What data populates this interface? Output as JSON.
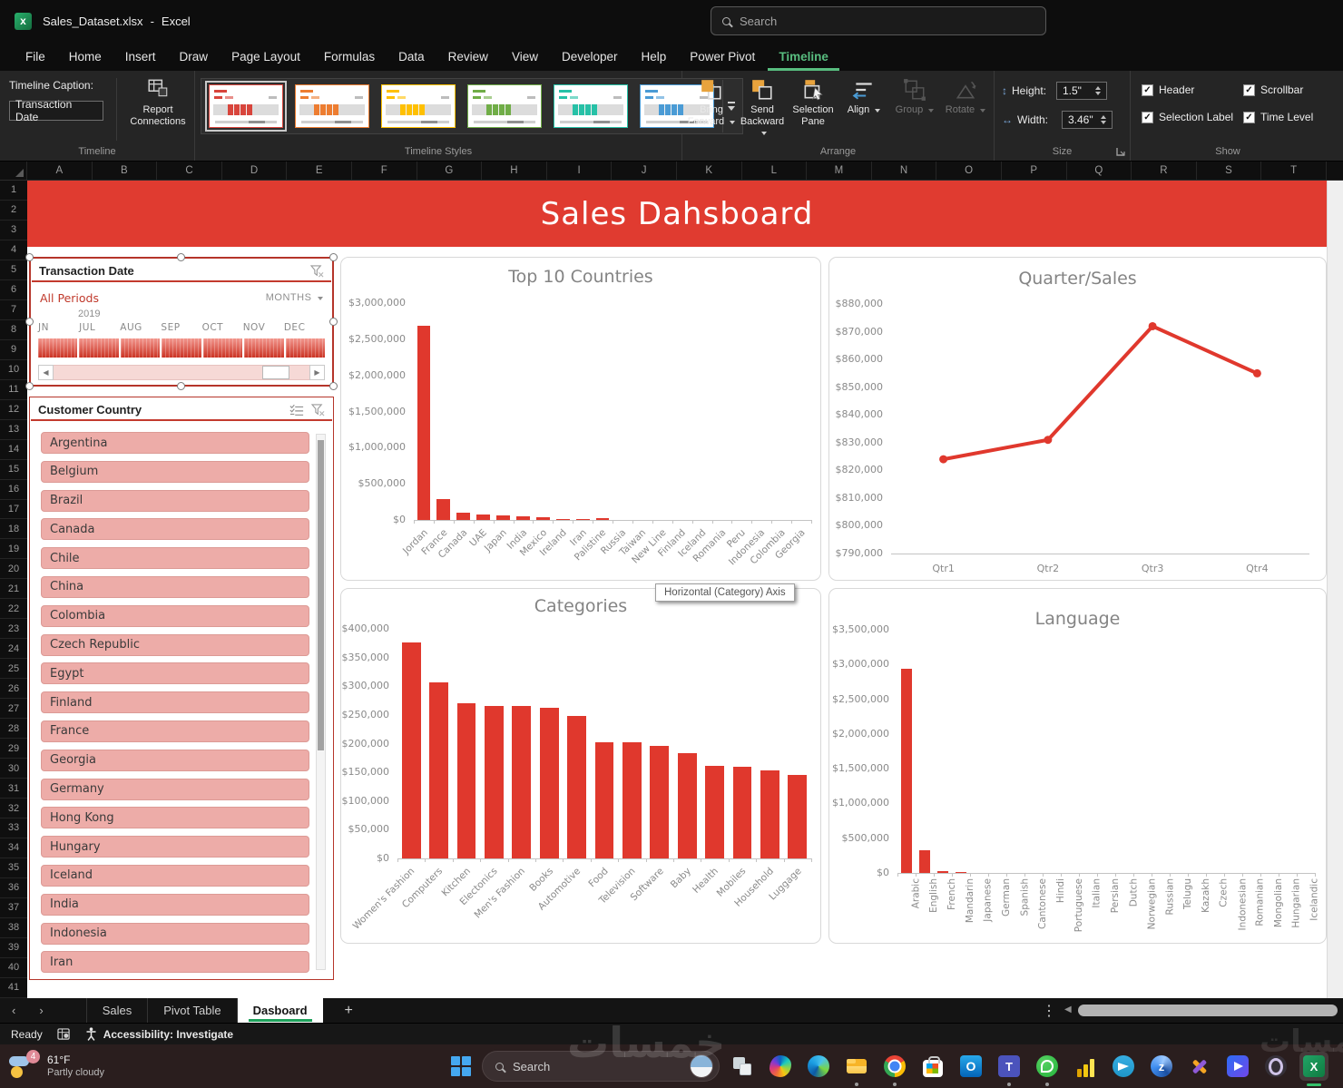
{
  "title_bar": {
    "file_name": "Sales_Dataset.xlsx",
    "separator": "-",
    "app_name": "Excel",
    "search_placeholder": "Search"
  },
  "ribbon_tabs": {
    "items": [
      "File",
      "Home",
      "Insert",
      "Draw",
      "Page Layout",
      "Formulas",
      "Data",
      "Review",
      "View",
      "Developer",
      "Help",
      "Power Pivot",
      "Timeline"
    ],
    "active": "Timeline"
  },
  "ribbon": {
    "timeline_group": {
      "caption_label": "Timeline Caption:",
      "caption_value": "Transaction Date",
      "report_connections_label": "Report Connections",
      "group_label": "Timeline"
    },
    "styles_group": {
      "group_label": "Timeline Styles",
      "styles": [
        {
          "name": "red",
          "color": "#d8453c",
          "selected": true
        },
        {
          "name": "orange",
          "color": "#ed7d31",
          "selected": false
        },
        {
          "name": "yellow",
          "color": "#ffc000",
          "selected": false
        },
        {
          "name": "green",
          "color": "#70ad47",
          "selected": false
        },
        {
          "name": "teal",
          "color": "#27c1a7",
          "selected": false
        },
        {
          "name": "blue",
          "color": "#4a9bd5",
          "selected": false
        }
      ]
    },
    "arrange_group": {
      "group_label": "Arrange",
      "buttons": [
        {
          "label": "Bring Forward",
          "icon": "bring-forward",
          "dropdown": true,
          "disabled": false
        },
        {
          "label": "Send Backward",
          "icon": "send-backward",
          "dropdown": true,
          "disabled": false
        },
        {
          "label": "Selection Pane",
          "icon": "selection-pane",
          "dropdown": false,
          "disabled": false
        },
        {
          "label": "Align",
          "icon": "align",
          "dropdown": true,
          "disabled": false
        },
        {
          "label": "Group",
          "icon": "group",
          "dropdown": true,
          "disabled": true
        },
        {
          "label": "Rotate",
          "icon": "rotate",
          "dropdown": true,
          "disabled": true
        }
      ]
    },
    "size_group": {
      "group_label": "Size",
      "height_label": "Height:",
      "height_value": "1.5\"",
      "width_label": "Width:",
      "width_value": "3.46\""
    },
    "show_group": {
      "group_label": "Show",
      "options": [
        {
          "label": "Header",
          "checked": true
        },
        {
          "label": "Scrollbar",
          "checked": true
        },
        {
          "label": "Selection Label",
          "checked": true
        },
        {
          "label": "Time Level",
          "checked": true
        }
      ]
    }
  },
  "grid": {
    "columns": [
      "A",
      "B",
      "C",
      "D",
      "E",
      "F",
      "G",
      "H",
      "I",
      "J",
      "K",
      "L",
      "M",
      "N",
      "O",
      "P",
      "Q",
      "R",
      "S",
      "T"
    ],
    "row_count": 41
  },
  "banner": {
    "title": "Sales Dahsboard"
  },
  "timeline_slicer": {
    "title": "Transaction Date",
    "period": "All Periods",
    "level": "MONTHS",
    "year": "2019",
    "months": [
      "JN",
      "JUL",
      "AUG",
      "SEP",
      "OCT",
      "NOV",
      "DEC"
    ]
  },
  "country_slicer": {
    "title": "Customer Country",
    "items": [
      "Argentina",
      "Belgium",
      "Brazil",
      "Canada",
      "Chile",
      "China",
      "Colombia",
      "Czech Republic",
      "Egypt",
      "Finland",
      "France",
      "Georgia",
      "Germany",
      "Hong Kong",
      "Hungary",
      "Iceland",
      "India",
      "Indonesia",
      "Iran"
    ]
  },
  "tooltip": {
    "text": "Horizontal (Category) Axis"
  },
  "chart_data": [
    {
      "type": "bar",
      "title": "Top 10 Countries",
      "categories": [
        "Jordan",
        "France",
        "Canada",
        "UAE",
        "Japan",
        "India",
        "Mexico",
        "Ireland",
        "Iran",
        "Palistine",
        "Russia",
        "Taiwan",
        "New Line",
        "Finland",
        "Iceland",
        "Romania",
        "Peru",
        "Indonesia",
        "Colombia",
        "Georgia"
      ],
      "values": [
        2680000,
        290000,
        105000,
        72000,
        60000,
        48000,
        32000,
        18000,
        10000,
        24000,
        0,
        0,
        0,
        0,
        0,
        0,
        0,
        0,
        0,
        0
      ],
      "y_ticks": [
        "$0",
        "$500,000",
        "$1,000,000",
        "$1,500,000",
        "$2,000,000",
        "$2,500,000",
        "$3,000,000"
      ],
      "ylim": [
        0,
        3000000
      ],
      "label_rotation": -45,
      "legend": "none",
      "grid": "off"
    },
    {
      "type": "line",
      "title": "Quarter/Sales",
      "categories": [
        "Qtr1",
        "Qtr2",
        "Qtr3",
        "Qtr4"
      ],
      "values": [
        824000,
        831000,
        872000,
        855000
      ],
      "y_ticks": [
        "$790,000",
        "$800,000",
        "$810,000",
        "$820,000",
        "$830,000",
        "$840,000",
        "$850,000",
        "$860,000",
        "$870,000",
        "$880,000"
      ],
      "ylim": [
        790000,
        880000
      ],
      "label_rotation": 0,
      "legend": "none",
      "grid": "off"
    },
    {
      "type": "bar",
      "title": "Categories",
      "categories": [
        "Women's Fashion",
        "Computers",
        "Kitchen",
        "Electonics",
        "Men's Fashion",
        "Books",
        "Automotive",
        "Food",
        "Television",
        "Software",
        "Baby",
        "Health",
        "Mobiles",
        "Household",
        "Luggage"
      ],
      "values": [
        376000,
        307000,
        271000,
        265000,
        265000,
        263000,
        248000,
        202000,
        202000,
        196000,
        184000,
        161000,
        160000,
        153000,
        145000
      ],
      "y_ticks": [
        "$0",
        "$50,000",
        "$100,000",
        "$150,000",
        "$200,000",
        "$250,000",
        "$300,000",
        "$350,000",
        "$400,000"
      ],
      "ylim": [
        0,
        400000
      ],
      "label_rotation": -45,
      "legend": "none",
      "grid": "off"
    },
    {
      "type": "bar",
      "title": "Language",
      "categories": [
        "Arabic",
        "English",
        "French",
        "Mandarin",
        "Japanese",
        "German",
        "Spanish",
        "Cantonese",
        "Hindi",
        "Portuguese",
        "Italian",
        "Persian",
        "Dutch",
        "Norwegian",
        "Russian",
        "Telugu",
        "Kazakh",
        "Czech",
        "Indonesian",
        "Romanian",
        "Mongolian",
        "Hungarian",
        "Icelandic"
      ],
      "values": [
        2940000,
        330000,
        25000,
        8000,
        4000,
        3000,
        2500,
        2000,
        2000,
        1500,
        1200,
        1000,
        1000,
        800,
        800,
        700,
        600,
        500,
        500,
        400,
        400,
        300,
        300
      ],
      "y_ticks": [
        "$0",
        "$500,000",
        "$1,000,000",
        "$1,500,000",
        "$2,000,000",
        "$2,500,000",
        "$3,000,000",
        "$3,500,000"
      ],
      "ylim": [
        0,
        3500000
      ],
      "label_rotation": -90,
      "legend": "none",
      "grid": "off"
    }
  ],
  "sheet_tabs": {
    "tabs": [
      "Sales",
      "Pivot Table",
      "Dasboard"
    ],
    "active": "Dasboard",
    "add_label": "+"
  },
  "status_bar": {
    "mode": "Ready",
    "accessibility": "Accessibility: Investigate"
  },
  "taskbar": {
    "weather_temp": "61°F",
    "weather_desc": "Partly cloudy",
    "badge": "4",
    "search_placeholder": "Search",
    "icons": [
      {
        "name": "task-view",
        "running": false
      },
      {
        "name": "copilot",
        "running": false
      },
      {
        "name": "edge",
        "running": false
      },
      {
        "name": "file-explorer",
        "running": true
      },
      {
        "name": "chrome",
        "running": true
      },
      {
        "name": "store",
        "running": false
      },
      {
        "name": "outlook",
        "running": false
      },
      {
        "name": "teams",
        "running": true
      },
      {
        "name": "whatsapp",
        "running": true
      },
      {
        "name": "power-bi",
        "running": false
      },
      {
        "name": "telegram",
        "running": false
      },
      {
        "name": "azure",
        "running": false
      },
      {
        "name": "dev-tools",
        "running": false
      },
      {
        "name": "clipchamp",
        "running": false
      },
      {
        "name": "opera",
        "running": false
      },
      {
        "name": "excel",
        "running": true,
        "active": true
      }
    ]
  },
  "watermark": "خمسات",
  "colors": {
    "accent_red": "#e03b30",
    "bar_red": "#e0382d",
    "green": "#21a366",
    "slicer_pink": "#edaca8"
  }
}
